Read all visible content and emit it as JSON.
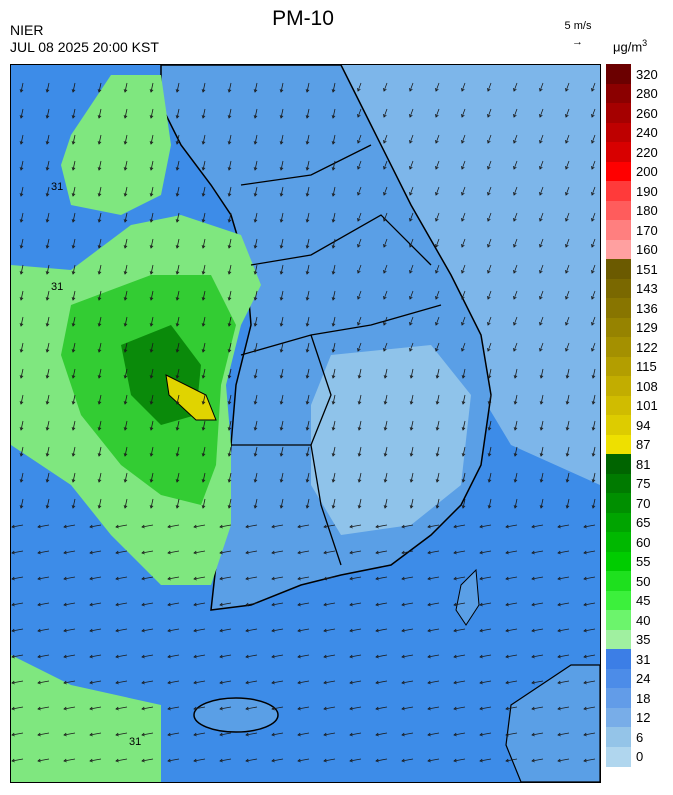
{
  "header": {
    "title": "PM-10",
    "agency": "NIER",
    "timestamp": "JUL 08 2025 20:00 KST",
    "wind_reference": "5 m/s",
    "unit_base": "μg/m",
    "unit_exp": "3"
  },
  "map": {
    "contour_label": "31",
    "colors": {
      "sea_blue": "#3d8ce8",
      "land_blue": "#5a9fe6",
      "light_blue": "#8fc3ea",
      "light_green": "#7fe77f",
      "green": "#33cc33",
      "dark_green": "#0a8a0a",
      "yellow": "#e0d400"
    }
  },
  "legend": {
    "items": [
      {
        "label": "320",
        "color": "#6b0000"
      },
      {
        "label": "280",
        "color": "#8b0000"
      },
      {
        "label": "260",
        "color": "#a50000"
      },
      {
        "label": "240",
        "color": "#be0000"
      },
      {
        "label": "220",
        "color": "#d80000"
      },
      {
        "label": "200",
        "color": "#ff0000"
      },
      {
        "label": "190",
        "color": "#ff3a3a"
      },
      {
        "label": "180",
        "color": "#ff5c5c"
      },
      {
        "label": "170",
        "color": "#ff7f7f"
      },
      {
        "label": "160",
        "color": "#ffa0a0"
      },
      {
        "label": "151",
        "color": "#6b5a00"
      },
      {
        "label": "143",
        "color": "#7a6800"
      },
      {
        "label": "136",
        "color": "#887500"
      },
      {
        "label": "129",
        "color": "#968300"
      },
      {
        "label": "122",
        "color": "#a49000"
      },
      {
        "label": "115",
        "color": "#b39e00"
      },
      {
        "label": "108",
        "color": "#c2ad00"
      },
      {
        "label": "101",
        "color": "#d0bc00"
      },
      {
        "label": "94",
        "color": "#ddcc00"
      },
      {
        "label": "87",
        "color": "#eee000"
      },
      {
        "label": "81",
        "color": "#006400"
      },
      {
        "label": "75",
        "color": "#007a00"
      },
      {
        "label": "70",
        "color": "#008f00"
      },
      {
        "label": "65",
        "color": "#00a400"
      },
      {
        "label": "60",
        "color": "#00b800"
      },
      {
        "label": "55",
        "color": "#00cc00"
      },
      {
        "label": "50",
        "color": "#1ee01e"
      },
      {
        "label": "45",
        "color": "#3cf03c"
      },
      {
        "label": "40",
        "color": "#6cf46c"
      },
      {
        "label": "35",
        "color": "#a0f0a0"
      },
      {
        "label": "31",
        "color": "#3c7ee6"
      },
      {
        "label": "24",
        "color": "#4c8ce8"
      },
      {
        "label": "18",
        "color": "#629ce8"
      },
      {
        "label": "12",
        "color": "#78ade8"
      },
      {
        "label": "6",
        "color": "#94c4e8"
      },
      {
        "label": "0",
        "color": "#b0d6ee"
      }
    ]
  }
}
